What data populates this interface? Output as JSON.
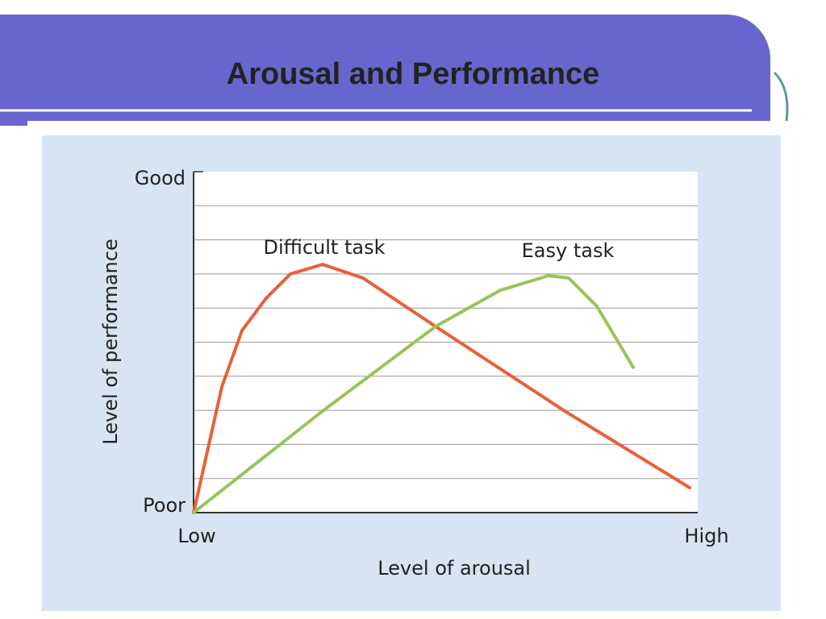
{
  "header": {
    "title": "Arousal and Performance"
  },
  "chart_data": {
    "type": "line",
    "xlabel": "Level of arousal",
    "ylabel": "Level of performance",
    "xlim": [
      0,
      10
    ],
    "xticks": [
      {
        "value": 0,
        "label": "Low"
      },
      {
        "value": 10,
        "label": "High"
      }
    ],
    "ylim": [
      0,
      10
    ],
    "yticks": [
      {
        "value": 0,
        "label": "Poor"
      },
      {
        "value": 10,
        "label": "Good"
      }
    ],
    "minor_yticks": [
      1,
      2,
      3,
      4,
      5,
      6,
      7,
      8,
      9
    ],
    "grid": true,
    "series": [
      {
        "name": "Difficult task",
        "color": "#e8603c",
        "x": [
          0,
          0.56,
          0.96,
          1.44,
          1.92,
          2.56,
          3.36,
          4.8,
          7.36,
          9.84
        ],
        "values": [
          0,
          3.69,
          5.34,
          6.29,
          7.0,
          7.28,
          6.88,
          5.46,
          2.98,
          0.73
        ]
      },
      {
        "name": "Easy task",
        "color": "#97c459",
        "x": [
          0,
          2.56,
          4.8,
          6.08,
          7.04,
          7.44,
          8.0,
          8.72
        ],
        "values": [
          0,
          2.98,
          5.46,
          6.52,
          6.95,
          6.88,
          6.05,
          4.26
        ]
      }
    ]
  }
}
